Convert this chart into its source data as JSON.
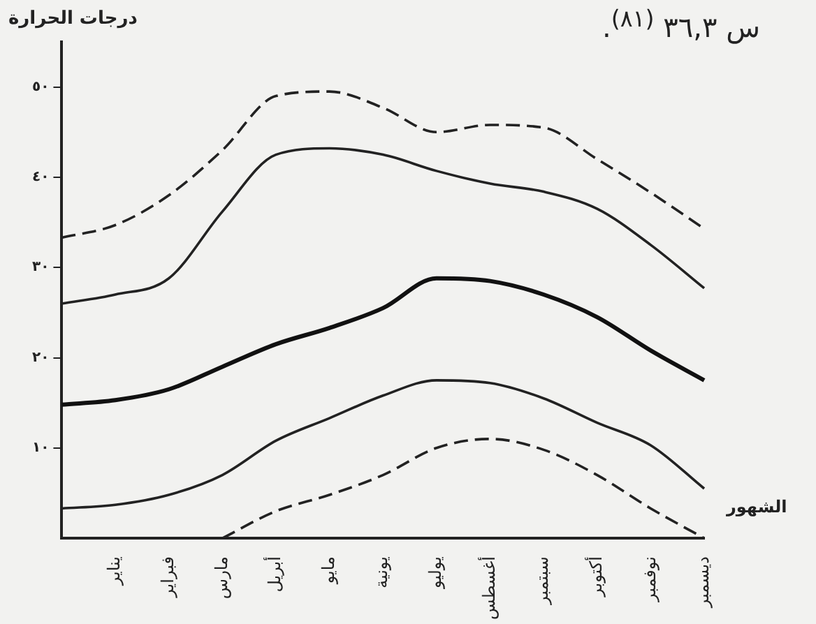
{
  "chart_data": {
    "type": "line",
    "ylabel": "درجات الحرارة",
    "xlabel": "الشهور",
    "annotations": [
      "س ٣٦,٣ $^{(٨١)}$."
    ],
    "categories": [
      null,
      "يناير",
      "فبراير",
      "مارس",
      "أبريل",
      "مايو",
      "يونية",
      "يوليو",
      "أغسطس",
      "سبتمبر",
      "أكتوبر",
      "نوفمبر",
      "ديسمبر"
    ],
    "ylim": [
      0,
      55
    ],
    "yticks": [
      {
        "value": 10,
        "label": "١٠"
      },
      {
        "value": 20,
        "label": "٢٠"
      },
      {
        "value": 30,
        "label": "٣٠"
      },
      {
        "value": 40,
        "label": "٤٠"
      },
      {
        "value": 50,
        "label": "٥٠"
      }
    ],
    "grid": false,
    "legend": false,
    "marker": "none",
    "series": [
      {
        "color": "#222222",
        "line_style": "dashed",
        "values": [
          33.3,
          34.7,
          38,
          43,
          49,
          49.5,
          47.7,
          45,
          45.8,
          45.5,
          42,
          38.3,
          34.3
        ]
      },
      {
        "color": "#222222",
        "line_style": "solid",
        "values": [
          26,
          27,
          28.8,
          36.2,
          42.5,
          43.2,
          42.5,
          40.7,
          39.3,
          38.4,
          36.5,
          32.5,
          27.7
        ]
      },
      {
        "color": "#111111",
        "line_style": "solid",
        "values": [
          14.8,
          15.3,
          16.5,
          19,
          21.5,
          23.3,
          25.5,
          28.8,
          28.5,
          27,
          24.5,
          20.8,
          17.5
        ]
      },
      {
        "color": "#222222",
        "line_style": "solid",
        "values": [
          3.3,
          3.7,
          4.8,
          7,
          10.8,
          13.3,
          15.8,
          17.5,
          17.2,
          15.5,
          12.8,
          10.3,
          5.5
        ]
      },
      {
        "color": "#222222",
        "line_style": "dashed",
        "values": [
          null,
          null,
          null,
          0,
          3,
          4.8,
          7,
          10,
          11,
          9.8,
          7,
          3.3,
          0
        ]
      }
    ]
  }
}
